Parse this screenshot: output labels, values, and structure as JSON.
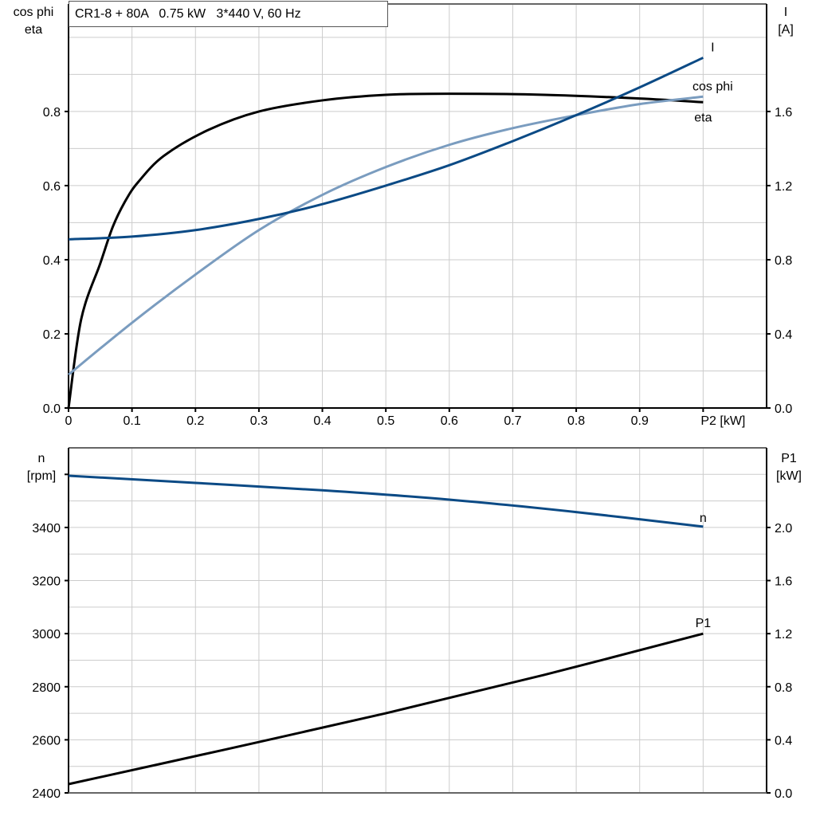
{
  "title": "CR1-8 + 80A   0.75 kW   3*440 V, 60 Hz",
  "colors": {
    "I": "#0b4a85",
    "n": "#0b4a85",
    "cos_phi": "#7a9cbf",
    "eta": "#000000",
    "P1": "#000000",
    "grid": "#cccccc"
  },
  "chart_data": [
    {
      "type": "line",
      "left_axis_label": [
        "cos phi",
        "eta"
      ],
      "right_axis_label": [
        "I",
        "[A]"
      ],
      "x_end_label": "P2 [kW]",
      "xlim": [
        0,
        1.1
      ],
      "ylim_left": [
        0,
        1.09
      ],
      "ylim_right": [
        0,
        2.18
      ],
      "x_ticks": [
        "0",
        "0.1",
        "0.2",
        "0.3",
        "0.4",
        "0.5",
        "0.6",
        "0.7",
        "0.8",
        "0.9"
      ],
      "y_ticks_left": [
        "0.0",
        "0.2",
        "0.4",
        "0.6",
        "0.8"
      ],
      "y_ticks_right": [
        "0.0",
        "0.4",
        "0.8",
        "1.2",
        "1.6"
      ],
      "grid": true,
      "series": [
        {
          "name": "eta",
          "axis": "left",
          "color_key": "eta",
          "x": [
            0,
            0.02,
            0.05,
            0.07,
            0.09,
            0.11,
            0.15,
            0.22,
            0.3,
            0.4,
            0.5,
            0.6,
            0.75,
            0.9,
            1.0
          ],
          "y": [
            0,
            0.24,
            0.39,
            0.49,
            0.56,
            0.61,
            0.68,
            0.75,
            0.8,
            0.83,
            0.845,
            0.848,
            0.845,
            0.835,
            0.825
          ]
        },
        {
          "name": "cos phi",
          "axis": "left",
          "color_key": "cos_phi",
          "x": [
            0,
            0.1,
            0.2,
            0.3,
            0.4,
            0.5,
            0.6,
            0.7,
            0.8,
            0.9,
            1.0
          ],
          "y": [
            0.09,
            0.23,
            0.36,
            0.48,
            0.575,
            0.65,
            0.71,
            0.755,
            0.79,
            0.82,
            0.84
          ]
        },
        {
          "name": "I",
          "axis": "right",
          "color_key": "I",
          "x": [
            0,
            0.1,
            0.2,
            0.3,
            0.4,
            0.5,
            0.6,
            0.7,
            0.8,
            0.9,
            1.0
          ],
          "y": [
            0.91,
            0.925,
            0.96,
            1.02,
            1.1,
            1.2,
            1.31,
            1.44,
            1.58,
            1.73,
            1.89
          ]
        }
      ]
    },
    {
      "type": "line",
      "left_axis_label": [
        "n",
        "[rpm]"
      ],
      "right_axis_label": [
        "P1",
        "[kW]"
      ],
      "xlim": [
        0,
        1.1
      ],
      "ylim_left": [
        2400,
        3700
      ],
      "ylim_right": [
        0,
        2.6
      ],
      "y_ticks_left": [
        "2400",
        "2600",
        "2800",
        "3000",
        "3200",
        "3400"
      ],
      "y_ticks_right": [
        "0.0",
        "0.4",
        "0.8",
        "1.2",
        "1.6",
        "2.0"
      ],
      "grid": true,
      "series": [
        {
          "name": "n",
          "axis": "left",
          "color_key": "n",
          "x": [
            0,
            0.2,
            0.4,
            0.6,
            0.8,
            1.0
          ],
          "y": [
            3595,
            3568,
            3540,
            3505,
            3458,
            3403
          ]
        },
        {
          "name": "P1",
          "axis": "right",
          "color_key": "P1",
          "x": [
            0,
            0.25,
            0.5,
            0.75,
            1.0
          ],
          "y": [
            0.066,
            0.33,
            0.6,
            0.89,
            1.2
          ]
        }
      ]
    }
  ]
}
